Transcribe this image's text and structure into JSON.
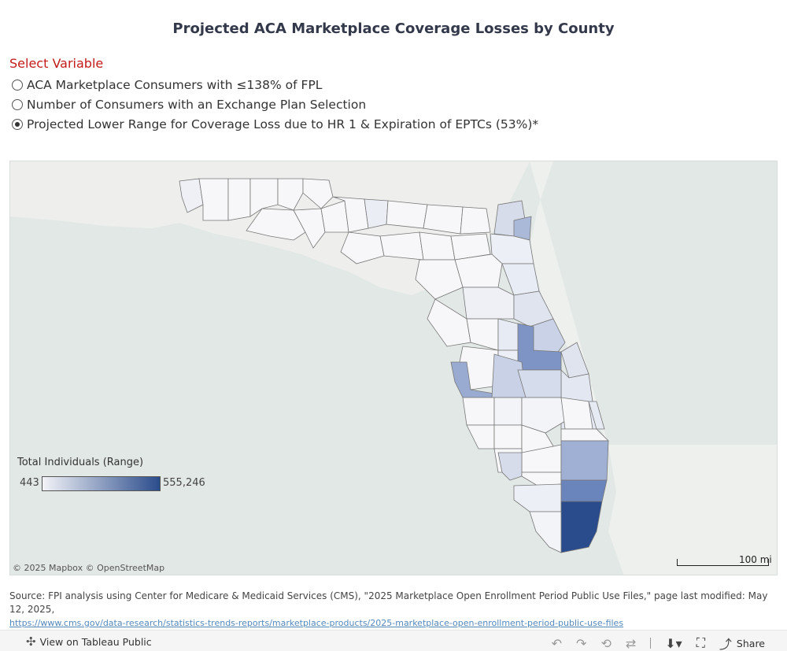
{
  "title": "Projected ACA Marketplace Coverage Losses by County",
  "parameter": {
    "header": "Select Variable",
    "options": [
      {
        "label": "ACA Marketplace Consumers with ≤138% of FPL",
        "selected": false
      },
      {
        "label": "Number of Consumers with an Exchange Plan Selection",
        "selected": false
      },
      {
        "label": "Projected Lower Range for Coverage Loss due to HR 1 & Expiration of EPTCs (53%)*",
        "selected": true
      }
    ]
  },
  "legend": {
    "title": "Total Individuals (Range)",
    "min": "443",
    "max": "555,246",
    "color_low": "#f2f3f7",
    "color_high": "#2b4c8c"
  },
  "map": {
    "attribution": "© 2025 Mapbox  © OpenStreetMap",
    "scale_label": "100 mi",
    "water_color": "#e2e8e6",
    "county_shading_note": ""
  },
  "source": {
    "text": "Source: FPI analysis using Center for Medicare & Medicaid Services (CMS), \"2025 Marketplace Open Enrollment Period Public Use Files,\" page last modified: May 12, 2025,",
    "link": "https://www.cms.gov/data-research/statistics-trends-reports/marketplace-products/2025-marketplace-open-enrollment-period-public-use-files"
  },
  "toolbar": {
    "view_label": "View on Tableau Public",
    "share_label": "Share",
    "icons": [
      "undo-icon",
      "redo-icon",
      "revert-icon",
      "refresh-icon",
      "download-icon",
      "fullscreen-icon",
      "share-icon"
    ]
  }
}
